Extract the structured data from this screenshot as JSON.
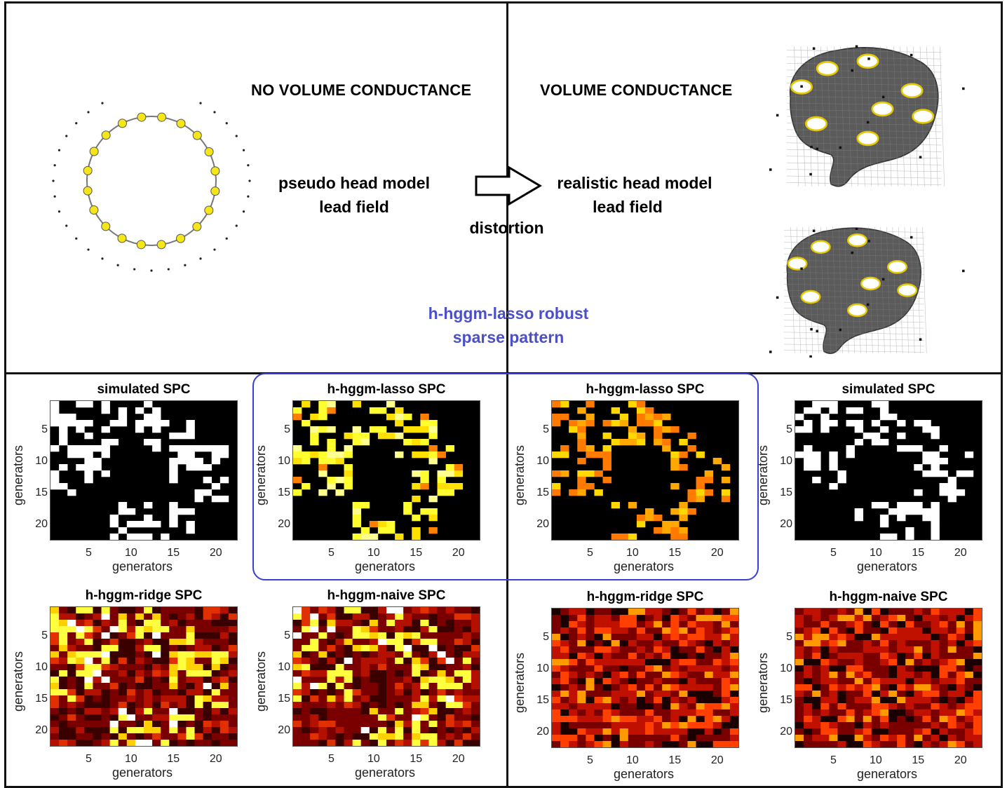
{
  "top": {
    "left_heading": "NO VOLUME CONDUCTANCE",
    "right_heading": "VOLUME CONDUCTANCE",
    "left_model": [
      "pseudo head model",
      "lead field"
    ],
    "right_model": [
      "realistic head model",
      "lead field"
    ],
    "arrow_label": "distortion",
    "robust_caption": [
      "h-hggm-lasso robust",
      "sparse pattern"
    ]
  },
  "colors": {
    "highlight": "#3a3fd0",
    "caption": "#4b50c8",
    "electrode": "#f5e61a"
  },
  "axis": {
    "label": "generators",
    "ticks": [
      "5",
      "10",
      "15",
      "20"
    ]
  },
  "panels": [
    {
      "title": "simulated  SPC",
      "style": "binary"
    },
    {
      "title": "h-hggm-lasso  SPC",
      "style": "sparse-yellow"
    },
    {
      "title": "h-hggm-lasso  SPC",
      "style": "sparse-orange"
    },
    {
      "title": "simulated  SPC",
      "style": "binary"
    },
    {
      "title": "h-hggm-ridge  SPC",
      "style": "dense-yellow"
    },
    {
      "title": "h-hggm-naive  SPC",
      "style": "dense-yellow"
    },
    {
      "title": "h-hggm-ridge  SPC",
      "style": "dense-red"
    },
    {
      "title": "h-hggm-naive  SPC",
      "style": "dense-red"
    }
  ]
}
